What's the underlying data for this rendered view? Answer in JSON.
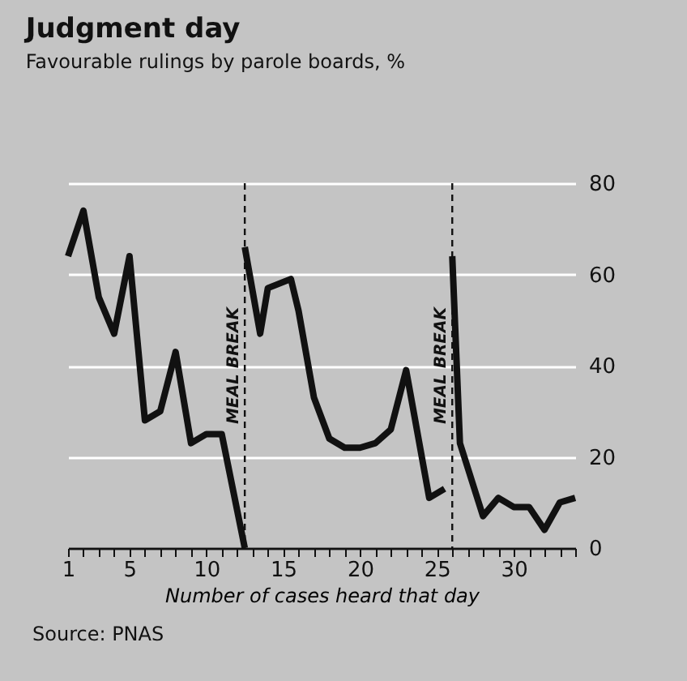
{
  "chart_data": {
    "type": "line",
    "title": "Judgment day",
    "subtitle": "Favourable rulings by parole boards, %",
    "xlabel": "Number of cases heard that day",
    "series": [
      {
        "color": "#111111",
        "x": [
          1,
          2,
          3,
          4,
          5,
          6,
          7,
          8,
          9,
          10,
          11,
          12.5
        ],
        "values": [
          64,
          74,
          55,
          47,
          64,
          28,
          30,
          43,
          23,
          25,
          25,
          0
        ]
      },
      {
        "color": "#111111",
        "x": [
          12.5,
          13.5,
          14,
          15.5,
          16,
          17,
          18,
          19,
          20,
          21,
          22,
          23,
          24.5,
          25.5
        ],
        "values": [
          66,
          47,
          57,
          59,
          52,
          33,
          24,
          22,
          22,
          23,
          26,
          39,
          11,
          13
        ]
      },
      {
        "color": "#111111",
        "x": [
          26,
          26.5,
          28,
          29,
          30,
          31,
          32,
          33,
          34
        ],
        "values": [
          64,
          23,
          7,
          11,
          9,
          9,
          4,
          10,
          11
        ]
      }
    ],
    "xlim": [
      1,
      34
    ],
    "xticks": [
      1,
      {
        "value": 2,
        "label": null
      },
      {
        "value": 3,
        "label": null
      },
      {
        "value": 4,
        "label": null
      },
      5,
      {
        "value": 6,
        "label": null
      },
      {
        "value": 7,
        "label": null
      },
      {
        "value": 8,
        "label": null
      },
      {
        "value": 9,
        "label": null
      },
      10,
      {
        "value": 11,
        "label": null
      },
      {
        "value": 12,
        "label": null
      },
      {
        "value": 13,
        "label": null
      },
      {
        "value": 14,
        "label": null
      },
      15,
      {
        "value": 16,
        "label": null
      },
      {
        "value": 17,
        "label": null
      },
      {
        "value": 18,
        "label": null
      },
      {
        "value": 19,
        "label": null
      },
      20,
      {
        "value": 21,
        "label": null
      },
      {
        "value": 22,
        "label": null
      },
      {
        "value": 23,
        "label": null
      },
      {
        "value": 24,
        "label": null
      },
      25,
      {
        "value": 26,
        "label": null
      },
      {
        "value": 27,
        "label": null
      },
      {
        "value": 28,
        "label": null
      },
      {
        "value": 29,
        "label": null
      },
      30,
      {
        "value": 31,
        "label": null
      },
      {
        "value": 32,
        "label": null
      },
      {
        "value": 33,
        "label": null
      },
      {
        "value": 34,
        "label": null
      }
    ],
    "ylim": [
      0,
      80
    ],
    "yticks": [
      0,
      20,
      40,
      60,
      80
    ],
    "grid": "y",
    "line_style": "solid",
    "ref_lines": [
      {
        "axis": "x",
        "value": 12.5,
        "label": "MEAL BREAK",
        "line_style": "dashed",
        "color": "#111111"
      },
      {
        "axis": "x",
        "value": 26,
        "label": "MEAL BREAK",
        "line_style": "dashed",
        "color": "#111111"
      }
    ],
    "annotations": [
      "Source: PNAS"
    ]
  }
}
